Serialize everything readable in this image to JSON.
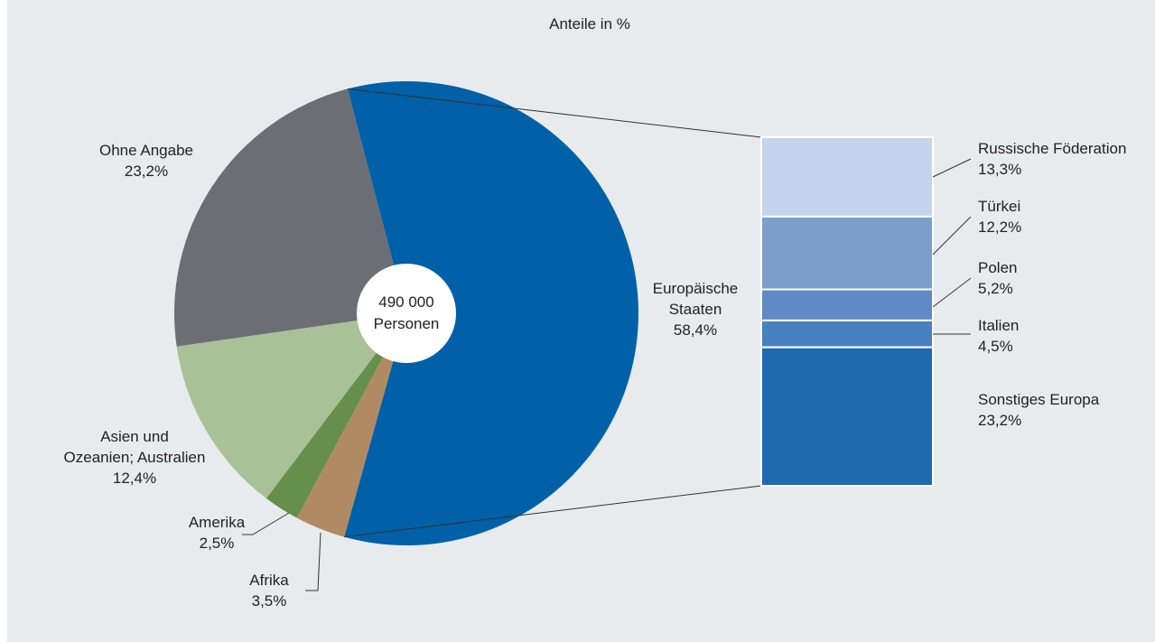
{
  "chart_data": {
    "type": "pie",
    "title": "Anteile in %",
    "center_label": [
      "490 000",
      "Personen"
    ],
    "slices": [
      {
        "label": [
          "Europäische",
          "Staaten"
        ],
        "value_label": "58,4%",
        "value": 58.4,
        "color": "#0061a8"
      },
      {
        "label": [
          "Afrika"
        ],
        "value_label": "3,5%",
        "value": 3.5,
        "color": "#b08a63"
      },
      {
        "label": [
          "Amerika"
        ],
        "value_label": "2,5%",
        "value": 2.5,
        "color": "#668f4c"
      },
      {
        "label": [
          "Asien und",
          "Ozeanien; Australien"
        ],
        "value_label": "12,4%",
        "value": 12.4,
        "color": "#a9c196"
      },
      {
        "label": [
          "Ohne Angabe"
        ],
        "value_label": "23,2%",
        "value": 23.2,
        "color": "#6b6e75"
      }
    ],
    "breakdown": {
      "parent": "Europäische Staaten",
      "type": "stacked-bar",
      "segments": [
        {
          "label": "Russische Föderation",
          "value_label": "13,3%",
          "value": 13.3,
          "color": "#c4d4ec"
        },
        {
          "label": "Türkei",
          "value_label": "12,2%",
          "value": 12.2,
          "color": "#7b9ecb"
        },
        {
          "label": "Polen",
          "value_label": "5,2%",
          "value": 5.2,
          "color": "#5f8ac5"
        },
        {
          "label": "Italien",
          "value_label": "4,5%",
          "value": 4.5,
          "color": "#4880c0"
        },
        {
          "label": "Sonstiges Europa",
          "value_label": "23,2%",
          "value": 23.2,
          "color": "#1e69b0"
        }
      ]
    }
  }
}
